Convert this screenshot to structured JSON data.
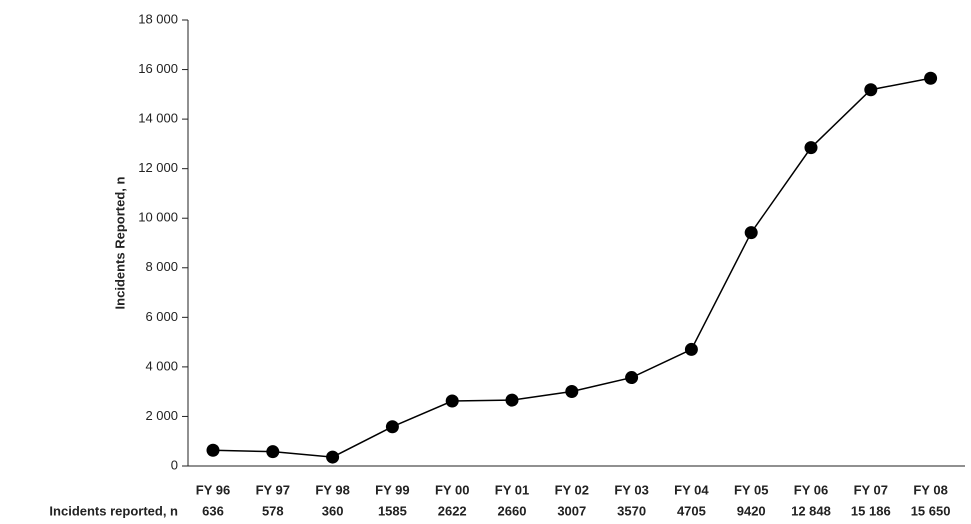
{
  "chart_data": {
    "type": "line",
    "y_label": "Incidents Reported, n",
    "table_label": "Incidents reported, n",
    "categories": [
      "FY 96",
      "FY 97",
      "FY 98",
      "FY 99",
      "FY 00",
      "FY 01",
      "FY 02",
      "FY 03",
      "FY 04",
      "FY 05",
      "FY 06",
      "FY 07",
      "FY 08"
    ],
    "values": [
      636,
      578,
      360,
      1585,
      2622,
      2660,
      3007,
      3570,
      4705,
      9420,
      12848,
      15186,
      15650
    ],
    "value_labels": [
      "636",
      "578",
      "360",
      "1585",
      "2622",
      "2660",
      "3007",
      "3570",
      "4705",
      "9420",
      "12 848",
      "15 186",
      "15 650"
    ],
    "color": "#000000",
    "ylim": [
      0,
      18000
    ],
    "yticks": [
      0,
      {
        "value": 2000,
        "label": "2 000"
      },
      {
        "value": 4000,
        "label": "4 000"
      },
      {
        "value": 6000,
        "label": "6 000"
      },
      {
        "value": 8000,
        "label": "8 000"
      },
      {
        "value": 10000,
        "label": "10 000"
      },
      {
        "value": 12000,
        "label": "12 000"
      },
      {
        "value": 14000,
        "label": "14 000"
      },
      {
        "value": 16000,
        "label": "16 000"
      },
      {
        "value": 18000,
        "label": "18 000"
      }
    ]
  }
}
